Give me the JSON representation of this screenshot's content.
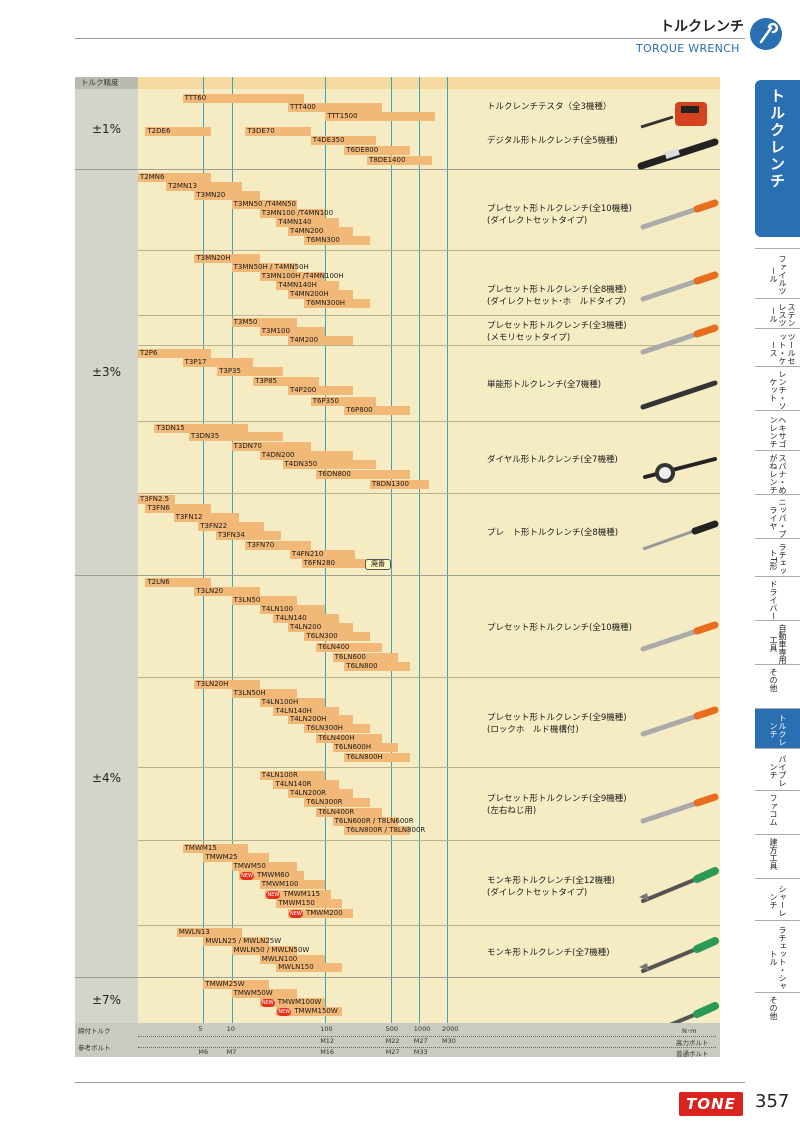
{
  "header": {
    "title_jp": "トルクレンチ",
    "title_en": "TORQUE WRENCH"
  },
  "side_tab": {
    "main": "トルクレンチ",
    "items": [
      "ファイルツール",
      "ステンレスツール",
      "ツールセット・ケース",
      "レンチ・ソケット",
      "ヘキサゴンレンチ",
      "スパナ・めがねレンチ",
      "ニッパ・プライヤ",
      "ラチェットT形",
      "ドライバー",
      "自動車専用工具",
      "その他",
      "トルクレンチ",
      "パイプレンチ",
      "ファコム",
      "建方工具",
      "シャーレンチ",
      "ラチェット・シャトル",
      "その他"
    ]
  },
  "chart": {
    "acc_header": "トルク精度",
    "accuracy": [
      "±1%",
      "±3%",
      "±4%",
      "±7%"
    ],
    "axis": {
      "label1": "締付トルク",
      "label2": "参考ボルト",
      "unit": "N･m",
      "right1": "高力ボルト",
      "right2": "普通ボルト",
      "ticks": [
        "5",
        "10",
        "100",
        "500",
        "1000",
        "2000"
      ],
      "hb": [
        "M12",
        "M22",
        "M27",
        "M30"
      ],
      "nb": [
        "M6",
        "M7",
        "M16",
        "M27",
        "M33"
      ]
    },
    "series": [
      {
        "desc": "トルクレンチテスタ（全3機種）"
      },
      {
        "desc": "デジタル形トルクレンチ(全5機種)"
      },
      {
        "desc": "プレセット形トルクレンチ(全10機種)",
        "desc2": "(ダイレクトセットタイプ)"
      },
      {
        "desc": "プレセット形トルクレンチ(全8機種)",
        "desc2": "(ダイレクトセット･ホ　ルドタイプ)"
      },
      {
        "desc": "プレセット形トルクレンチ(全3機種)",
        "desc2": "(メモリセットタイプ)"
      },
      {
        "desc": "単能形トルクレンチ(全7機種)"
      },
      {
        "desc": "ダイヤル形トルクレンチ(全7機種)"
      },
      {
        "desc": "プレ　ト形トルクレンチ(全8機種)"
      },
      {
        "desc": "プレセット形トルクレンチ(全10機種)"
      },
      {
        "desc": "プレセット形トルクレンチ(全9機種)",
        "desc2": "(ロックホ　ルド機構付)"
      },
      {
        "desc": "プレセット形トルクレンチ(全9機種)",
        "desc2": "(左右ねじ用)"
      },
      {
        "desc": "モンキ形トルクレンチ(全12機種)",
        "desc2": "(ダイレクトセットタイプ)"
      },
      {
        "desc": "モンキ形トルクレンチ(全7機種)"
      }
    ],
    "discontinued": "廃番",
    "new_mark": "NEW",
    "bars": [
      {
        "l": "TTT60",
        "x1": 3,
        "x2": 60
      },
      {
        "l": "TTT400",
        "x1": 40,
        "x2": 400
      },
      {
        "l": "TTT1500",
        "x1": 100,
        "x2": 1500
      },
      {
        "l": "T2DE6",
        "x1": 1.2,
        "x2": 6
      },
      {
        "l": "T3DE70",
        "x1": 14,
        "x2": 70
      },
      {
        "l": "T4DE350",
        "x1": 70,
        "x2": 350
      },
      {
        "l": "T6DE800",
        "x1": 160,
        "x2": 800
      },
      {
        "l": "T8DE1400",
        "x1": 280,
        "x2": 1400
      },
      {
        "l": "T2MN6",
        "x1": 1,
        "x2": 6
      },
      {
        "l": "T2MN13",
        "x1": 2,
        "x2": 13
      },
      {
        "l": "T3MN20",
        "x1": 4,
        "x2": 20
      },
      {
        "l": "T3MN50 /T4MN50",
        "x1": 10,
        "x2": 50
      },
      {
        "l": "T3MN100 /T4MN100",
        "x1": 20,
        "x2": 100
      },
      {
        "l": "T4MN140",
        "x1": 30,
        "x2": 140
      },
      {
        "l": "T4MN200",
        "x1": 40,
        "x2": 200
      },
      {
        "l": "T6MN300",
        "x1": 60,
        "x2": 300
      },
      {
        "l": "T3MN20H",
        "x1": 4,
        "x2": 20
      },
      {
        "l": "T3MN50H / T4MN50H",
        "x1": 10,
        "x2": 50
      },
      {
        "l": "T3MN100H /T4MN100H",
        "x1": 20,
        "x2": 100
      },
      {
        "l": "T4MN140H",
        "x1": 30,
        "x2": 140
      },
      {
        "l": "T4MN200H",
        "x1": 40,
        "x2": 200
      },
      {
        "l": "T6MN300H",
        "x1": 60,
        "x2": 300
      },
      {
        "l": "T3M50",
        "x1": 10,
        "x2": 50
      },
      {
        "l": "T3M100",
        "x1": 20,
        "x2": 100
      },
      {
        "l": "T4M200",
        "x1": 40,
        "x2": 200
      },
      {
        "l": "T2P6",
        "x1": 1,
        "x2": 6
      },
      {
        "l": "T3P17",
        "x1": 3,
        "x2": 17
      },
      {
        "l": "T3P35",
        "x1": 7,
        "x2": 35
      },
      {
        "l": "T3P85",
        "x1": 17,
        "x2": 85
      },
      {
        "l": "T4P200",
        "x1": 40,
        "x2": 200
      },
      {
        "l": "T6P350",
        "x1": 70,
        "x2": 350
      },
      {
        "l": "T6P800",
        "x1": 160,
        "x2": 800
      },
      {
        "l": "T3DN15",
        "x1": 1.5,
        "x2": 15
      },
      {
        "l": "T3DN35",
        "x1": 3.5,
        "x2": 35
      },
      {
        "l": "T3DN70",
        "x1": 10,
        "x2": 70
      },
      {
        "l": "T4DN200",
        "x1": 20,
        "x2": 200
      },
      {
        "l": "T4DN350",
        "x1": 35,
        "x2": 350
      },
      {
        "l": "T6DN800",
        "x1": 80,
        "x2": 800
      },
      {
        "l": "T8DN1300",
        "x1": 300,
        "x2": 1300
      },
      {
        "l": "T3FN2.5",
        "x1": 1,
        "x2": 2.5
      },
      {
        "l": "T3FN6",
        "x1": 1.2,
        "x2": 6
      },
      {
        "l": "T3FN12",
        "x1": 2.4,
        "x2": 12
      },
      {
        "l": "T3FN22",
        "x1": 4.4,
        "x2": 22
      },
      {
        "l": "T3FN34",
        "x1": 6.8,
        "x2": 34
      },
      {
        "l": "T3FN70",
        "x1": 14,
        "x2": 70
      },
      {
        "l": "T4FN210",
        "x1": 42,
        "x2": 210
      },
      {
        "l": "T6FN280",
        "x1": 56,
        "x2": 280,
        "dis": true
      },
      {
        "l": "T2LN6",
        "x1": 1.2,
        "x2": 6
      },
      {
        "l": "T3LN20",
        "x1": 4,
        "x2": 20
      },
      {
        "l": "T3LN50",
        "x1": 10,
        "x2": 50
      },
      {
        "l": "T4LN100",
        "x1": 20,
        "x2": 100
      },
      {
        "l": "T4LN140",
        "x1": 28,
        "x2": 140
      },
      {
        "l": "T4LN200",
        "x1": 40,
        "x2": 200
      },
      {
        "l": "T6LN300",
        "x1": 60,
        "x2": 300
      },
      {
        "l": "T6LN400",
        "x1": 80,
        "x2": 400
      },
      {
        "l": "T6LN600",
        "x1": 120,
        "x2": 600
      },
      {
        "l": "T6LN800",
        "x1": 160,
        "x2": 800
      },
      {
        "l": "T3LN20H",
        "x1": 4,
        "x2": 20
      },
      {
        "l": "T3LN50H",
        "x1": 10,
        "x2": 50
      },
      {
        "l": "T4LN100H",
        "x1": 20,
        "x2": 100
      },
      {
        "l": "T4LN140H",
        "x1": 28,
        "x2": 140
      },
      {
        "l": "T4LN200H",
        "x1": 40,
        "x2": 200
      },
      {
        "l": "T6LN300H",
        "x1": 60,
        "x2": 300
      },
      {
        "l": "T6LN400H",
        "x1": 80,
        "x2": 400
      },
      {
        "l": "T6LN600H",
        "x1": 120,
        "x2": 600
      },
      {
        "l": "T6LN800H",
        "x1": 160,
        "x2": 800
      },
      {
        "l": "T4LN100R",
        "x1": 20,
        "x2": 100
      },
      {
        "l": "T4LN140R",
        "x1": 28,
        "x2": 140
      },
      {
        "l": "T4LN200R",
        "x1": 40,
        "x2": 200
      },
      {
        "l": "T6LN300R",
        "x1": 60,
        "x2": 300
      },
      {
        "l": "T6LN400R",
        "x1": 80,
        "x2": 400
      },
      {
        "l": "T6LN600R / T8LN600R",
        "x1": 120,
        "x2": 600
      },
      {
        "l": "T6LN800R / T8LN800R",
        "x1": 160,
        "x2": 800
      },
      {
        "l": "TMWM15",
        "x1": 3,
        "x2": 15
      },
      {
        "l": "TMWM25",
        "x1": 5,
        "x2": 25
      },
      {
        "l": "TMWM50",
        "x1": 10,
        "x2": 50
      },
      {
        "l": "TMWM60",
        "x1": 12,
        "x2": 60,
        "new": true
      },
      {
        "l": "TMWM100",
        "x1": 20,
        "x2": 100
      },
      {
        "l": "TMWM115",
        "x1": 23,
        "x2": 115,
        "new": true
      },
      {
        "l": "TMWM150",
        "x1": 30,
        "x2": 150
      },
      {
        "l": "TMWM200",
        "x1": 40,
        "x2": 200,
        "new": true
      },
      {
        "l": "MWLN13",
        "x1": 2.6,
        "x2": 13
      },
      {
        "l": "MWLN25 / MWLN25W",
        "x1": 5,
        "x2": 25
      },
      {
        "l": "MWLN50 / MWLN50W",
        "x1": 10,
        "x2": 50
      },
      {
        "l": "MWLN100",
        "x1": 20,
        "x2": 100
      },
      {
        "l": "MWLN150",
        "x1": 30,
        "x2": 150
      },
      {
        "l": "TMWM25W",
        "x1": 5,
        "x2": 25
      },
      {
        "l": "TMWM50W",
        "x1": 10,
        "x2": 50
      },
      {
        "l": "TMWM100W",
        "x1": 20,
        "x2": 100,
        "new": true
      },
      {
        "l": "TMWM150W",
        "x1": 30,
        "x2": 150,
        "new": true
      }
    ]
  },
  "footer": {
    "brand": "TONE",
    "page": "357"
  }
}
